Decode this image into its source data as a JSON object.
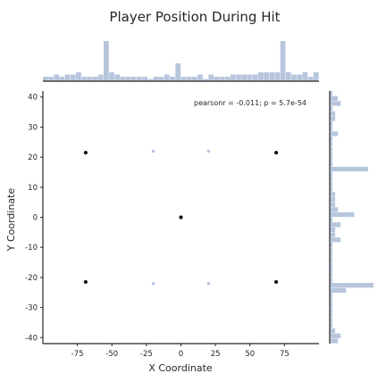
{
  "chart_data": {
    "type": "scatter",
    "title": "Player Position During Hit",
    "xlabel": "X Coordinate",
    "ylabel": "Y Coordinate",
    "xlim": [
      -100,
      100
    ],
    "ylim": [
      -42,
      42
    ],
    "xticks": [
      -75,
      -50,
      -25,
      0,
      25,
      50,
      75
    ],
    "yticks": [
      -40,
      -30,
      -20,
      -10,
      0,
      10,
      20,
      30,
      40
    ],
    "annotation": "pearsonr = -0.011; p = 5.7e-54",
    "grid": false,
    "colors": {
      "hist": "#b7c6dd",
      "dark_points": "#111111",
      "light_points": "#b7c6dd",
      "axis": "#262626"
    },
    "points": [
      {
        "x": -69,
        "y": 21.5,
        "shade": "dark"
      },
      {
        "x": 69,
        "y": 21.5,
        "shade": "dark"
      },
      {
        "x": -69,
        "y": -21.5,
        "shade": "dark"
      },
      {
        "x": 69,
        "y": -21.5,
        "shade": "dark"
      },
      {
        "x": -20,
        "y": 22,
        "shade": "light"
      },
      {
        "x": 20,
        "y": 22,
        "shade": "light"
      },
      {
        "x": -20,
        "y": -22,
        "shade": "light"
      },
      {
        "x": 20,
        "y": -22,
        "shade": "light"
      },
      {
        "x": 0,
        "y": 0,
        "shade": "dark"
      }
    ],
    "x_marginal": {
      "bin_start": -100,
      "bin_width": 4,
      "counts": [
        2,
        2,
        3,
        2,
        3,
        3,
        4,
        2,
        2,
        2,
        3,
        18,
        4,
        3,
        2,
        2,
        2,
        2,
        2,
        1,
        2,
        2,
        3,
        2,
        8,
        2,
        2,
        2,
        3,
        1,
        3,
        2,
        2,
        2,
        3,
        3,
        3,
        3,
        3,
        4,
        4,
        4,
        4,
        18,
        4,
        3,
        3,
        4,
        2,
        4
      ]
    },
    "y_marginal": {
      "bin_start": -42,
      "bin_width": 1.68,
      "counts": [
        3,
        4,
        2,
        1,
        1,
        1,
        1,
        1,
        1,
        1,
        6,
        16,
        1,
        1,
        1,
        1,
        1,
        1,
        1,
        1,
        4,
        2,
        2,
        4,
        1,
        9,
        3,
        2,
        2,
        2,
        1,
        1,
        1,
        1,
        14,
        1,
        1,
        1,
        1,
        1,
        1,
        3,
        1,
        1,
        2,
        2,
        1,
        4,
        3,
        1
      ]
    }
  }
}
